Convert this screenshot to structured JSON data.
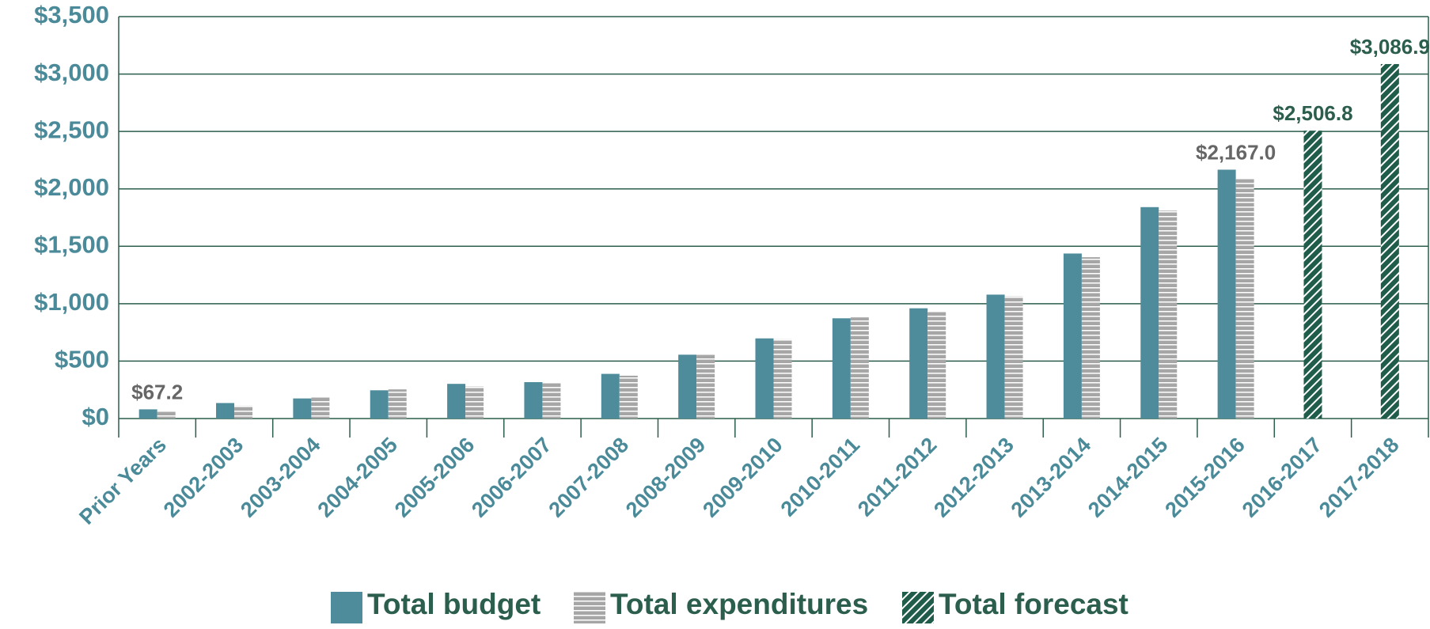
{
  "chart_data": {
    "type": "bar",
    "categories": [
      "Prior Years",
      "2002-2003",
      "2003-2004",
      "2004-2005",
      "2005-2006",
      "2006-2007",
      "2007-2008",
      "2008-2009",
      "2009-2010",
      "2010-2011",
      "2011-2012",
      "2012-2013",
      "2013-2014",
      "2014-2015",
      "2015-2016",
      "2016-2017",
      "2017-2018"
    ],
    "series": [
      {
        "name": "Total budget",
        "color": "#4e8c9b",
        "pattern": "solid",
        "values": [
          80,
          135,
          175,
          246,
          302,
          317,
          389,
          556,
          698,
          873,
          960,
          1079,
          1437,
          1841,
          2167.0,
          null,
          null
        ],
        "value_labels": [
          null,
          null,
          null,
          null,
          null,
          null,
          null,
          null,
          null,
          null,
          null,
          null,
          null,
          null,
          "$2,167.0",
          null,
          null
        ]
      },
      {
        "name": "Total expenditures",
        "color": "#a6a6a6",
        "pattern": "horizontal-stripes",
        "values": [
          67.2,
          111,
          183,
          254,
          278,
          310,
          373,
          556,
          690,
          881,
          937,
          1063,
          1405,
          1810,
          2087,
          null,
          null
        ],
        "value_labels": [
          "$67.2",
          null,
          null,
          null,
          null,
          null,
          null,
          null,
          null,
          null,
          null,
          null,
          null,
          null,
          null,
          null,
          null
        ]
      },
      {
        "name": "Total forecast",
        "color": "#1f5c4a",
        "pattern": "diagonal-hatch",
        "values": [
          null,
          null,
          null,
          null,
          null,
          null,
          null,
          null,
          null,
          null,
          null,
          null,
          null,
          null,
          null,
          2506.8,
          3086.9
        ],
        "value_labels": [
          null,
          null,
          null,
          null,
          null,
          null,
          null,
          null,
          null,
          null,
          null,
          null,
          null,
          null,
          null,
          "$2,506.8",
          "$3,086.9"
        ]
      }
    ],
    "ylim": [
      0,
      3500
    ],
    "yticks": [
      {
        "value": 0,
        "label": "$0"
      },
      {
        "value": 500,
        "label": "$500"
      },
      {
        "value": 1000,
        "label": "$1,000"
      },
      {
        "value": 1500,
        "label": "$1,500"
      },
      {
        "value": 2000,
        "label": "$2,000"
      },
      {
        "value": 2500,
        "label": "$2,500"
      },
      {
        "value": 3000,
        "label": "$3,000"
      },
      {
        "value": 3500,
        "label": "$3,500"
      }
    ],
    "grid": true,
    "legend": "bottom"
  }
}
